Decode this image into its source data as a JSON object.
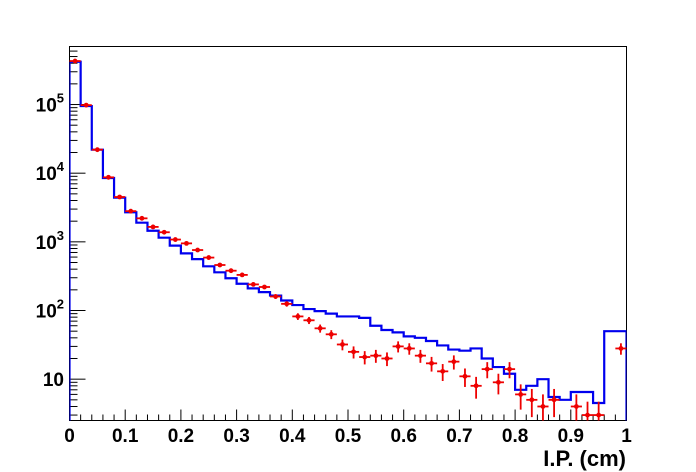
{
  "chart_data": {
    "type": "histogram",
    "title": "",
    "xlabel": "I.P. (cm)",
    "ylabel": "",
    "xlim": [
      0,
      1
    ],
    "ylim": [
      2.5,
      700000
    ],
    "y_scale": "log",
    "grid": false,
    "x_ticks": [
      "0",
      "0.1",
      "0.2",
      "0.3",
      "0.4",
      "0.5",
      "0.6",
      "0.7",
      "0.8",
      "0.9",
      "1"
    ],
    "y_ticks": [
      {
        "value": 10,
        "base": "10",
        "exp": ""
      },
      {
        "value": 100,
        "base": "10",
        "exp": "2"
      },
      {
        "value": 1000,
        "base": "10",
        "exp": "3"
      },
      {
        "value": 10000,
        "base": "10",
        "exp": "4"
      },
      {
        "value": 100000,
        "base": "10",
        "exp": "5"
      }
    ],
    "bin_width": 0.02,
    "series": [
      {
        "style": "histogram-line",
        "color": "#0000ee",
        "values": [
          420000,
          95000,
          22000,
          8500,
          4400,
          2700,
          1900,
          1450,
          1150,
          880,
          680,
          560,
          440,
          360,
          295,
          245,
          210,
          185,
          165,
          140,
          120,
          105,
          98,
          90,
          82,
          82,
          78,
          60,
          52,
          48,
          42,
          40,
          36,
          31,
          27,
          26,
          28,
          20,
          15,
          12,
          7,
          8,
          10,
          5.5,
          5,
          6.5,
          6.5,
          4.5,
          50,
          50
        ]
      },
      {
        "style": "points-with-error-bars",
        "color": "#ee0000",
        "values": [
          430000,
          98000,
          22000,
          8700,
          4500,
          2800,
          2200,
          1650,
          1380,
          1080,
          950,
          760,
          590,
          460,
          380,
          330,
          240,
          220,
          160,
          125,
          82,
          72,
          55,
          45,
          32,
          25,
          21,
          22,
          20,
          30,
          28,
          22,
          17,
          13,
          18,
          11,
          8,
          14,
          9,
          14,
          6,
          5,
          4,
          5,
          0,
          4,
          3,
          3,
          0,
          28
        ],
        "errors": [
          650,
          310,
          150,
          93,
          67,
          53,
          47,
          41,
          37,
          33,
          31,
          28,
          24,
          21,
          19,
          18,
          15.5,
          15,
          12.6,
          11.2,
          9.1,
          8.5,
          7.4,
          6.7,
          5.7,
          5,
          4.6,
          4.7,
          4.5,
          5.5,
          5.3,
          4.7,
          4.1,
          3.6,
          4.2,
          3.3,
          2.8,
          3.7,
          3,
          3.7,
          2.4,
          2.2,
          2,
          2.2,
          0,
          2,
          1.7,
          1.7,
          0,
          5.3
        ]
      }
    ]
  }
}
